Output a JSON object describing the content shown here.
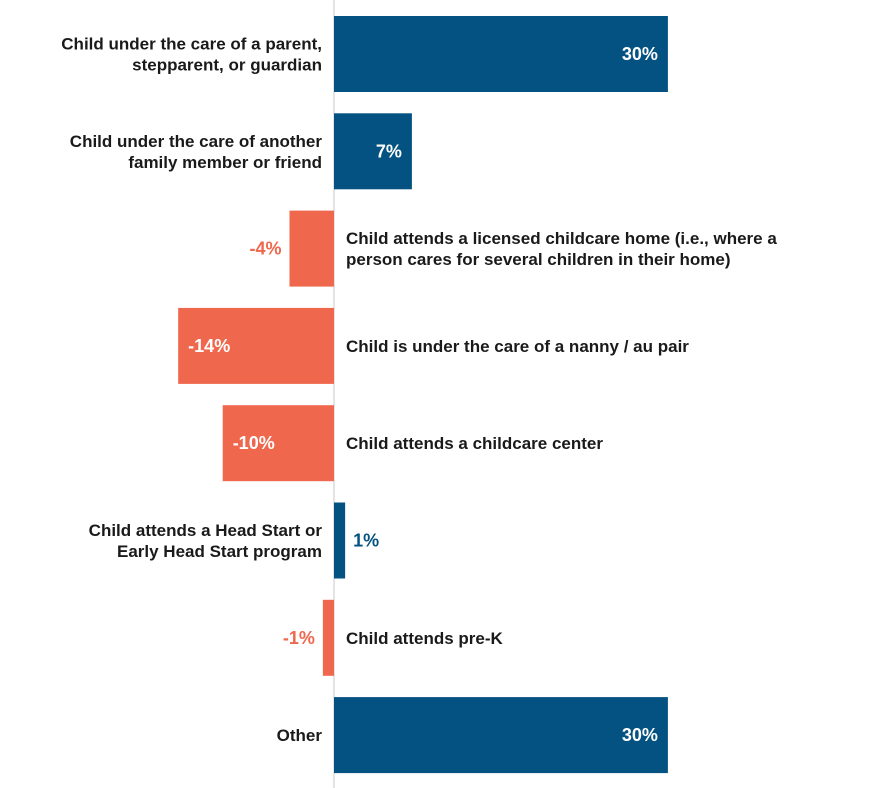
{
  "colors": {
    "positive": "#045281",
    "negative": "#ef674d",
    "axis": "#c8c8c8",
    "label_text": "#1a1a1a",
    "inside_value_text": "#ffffff"
  },
  "chart_data": {
    "type": "bar",
    "orientation": "horizontal",
    "title": "",
    "xlabel": "",
    "ylabel": "",
    "value_format": "percent",
    "xlim": [
      -15,
      32
    ],
    "grid": false,
    "legend": "none",
    "categories": [
      "Child under the care of a parent, stepparent, or guardian",
      "Child under the care of another family member or friend",
      "Child attends a licensed childcare home (i.e., where a person cares for several children in their home)",
      "Child is under the care of a nanny / au pair",
      "Child attends a childcare center",
      "Child attends a Head Start or Early Head Start program",
      "Child attends pre-K",
      "Other"
    ],
    "label_lines": [
      [
        "Child under the care of a parent,",
        "stepparent, or guardian"
      ],
      [
        "Child under the care of another",
        "family member or friend"
      ],
      [
        "Child attends a licensed childcare home (i.e., where a",
        "person cares for several children in their home)"
      ],
      [
        "Child is under the care of a nanny / au pair"
      ],
      [
        "Child attends a childcare center"
      ],
      [
        "Child attends a Head Start or",
        "Early Head Start program"
      ],
      [
        "Child attends pre-K"
      ],
      [
        "Other"
      ]
    ],
    "values": [
      30,
      7,
      -4,
      -14,
      -10,
      1,
      -1,
      30
    ],
    "value_labels": [
      "30%",
      "7%",
      "-4%",
      "-14%",
      "-10%",
      "1%",
      "-1%",
      "30%"
    ]
  }
}
